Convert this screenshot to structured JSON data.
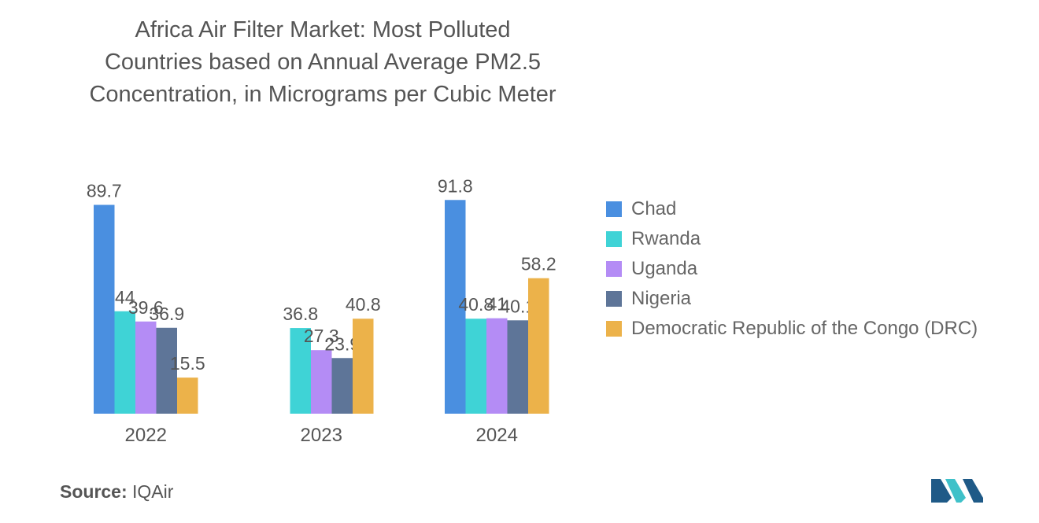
{
  "chart_data": {
    "type": "bar",
    "title_lines": [
      "Africa Air Filter Market: Most Polluted",
      "Countries based on Annual Average PM2.5",
      "Concentration, in Micrograms per Cubic Meter"
    ],
    "categories": [
      "2022",
      "2023",
      "2024"
    ],
    "series": [
      {
        "name": "Chad",
        "color": "#4a8fe0",
        "values": [
          89.7,
          null,
          91.8
        ],
        "labels": [
          "89.7",
          "",
          "91.8"
        ]
      },
      {
        "name": "Rwanda",
        "color": "#3fd3d6",
        "values": [
          44,
          36.8,
          40.8
        ],
        "labels": [
          "44",
          "36.8",
          "40.8"
        ]
      },
      {
        "name": "Uganda",
        "color": "#b48cf5",
        "values": [
          39.6,
          27.3,
          41
        ],
        "labels": [
          "39.6",
          "27.3",
          "41"
        ]
      },
      {
        "name": "Nigeria",
        "color": "#5e7598",
        "values": [
          36.9,
          23.9,
          40.1
        ],
        "labels": [
          "36.9",
          "23.9",
          "40.1"
        ]
      },
      {
        "name": "Democratic Republic of the Congo (DRC)",
        "color": "#ecb24a",
        "values": [
          15.5,
          40.8,
          58.2
        ],
        "labels": [
          "15.5",
          "40.8",
          "58.2"
        ]
      }
    ],
    "ylim": [
      0,
      100
    ],
    "xlabel": "",
    "ylabel": "",
    "legend_position": "right"
  },
  "source": {
    "label": "Source:",
    "value": "IQAir"
  },
  "logo": {
    "icon": "mordor-intelligence-logo-icon",
    "colors": [
      "#1f5a87",
      "#3fc1c9"
    ]
  }
}
